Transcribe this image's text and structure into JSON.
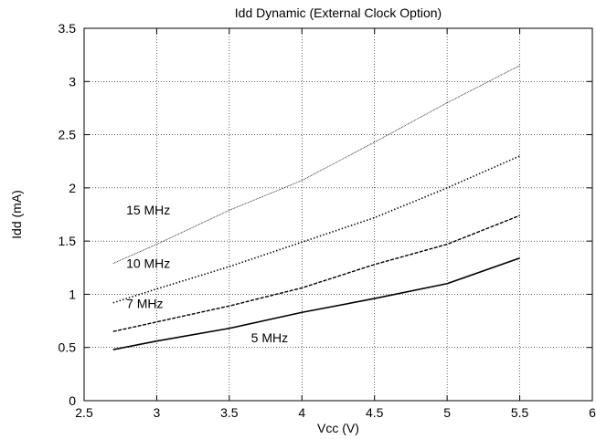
{
  "chart_data": {
    "type": "line",
    "title": "Idd Dynamic (External Clock Option)",
    "xlabel": "Vcc (V)",
    "ylabel": "Idd (mA)",
    "xlim": [
      2.5,
      6
    ],
    "ylim": [
      0,
      3.5
    ],
    "x_ticks": [
      "2.5",
      "3",
      "3.5",
      "4",
      "4.5",
      "5",
      "5.5",
      "6"
    ],
    "y_ticks": [
      "0",
      "0.5",
      "1",
      "1.5",
      "2",
      "2.5",
      "3",
      "3.5"
    ],
    "grid": true,
    "legend": "none",
    "series": [
      {
        "name": "5 MHz",
        "x": [
          2.7,
          3.0,
          3.5,
          4.0,
          4.5,
          5.0,
          5.5
        ],
        "y": [
          0.48,
          0.56,
          0.68,
          0.83,
          0.96,
          1.1,
          1.34
        ],
        "style": "solid"
      },
      {
        "name": "7 MHz",
        "x": [
          2.7,
          3.0,
          3.5,
          4.0,
          4.5,
          5.0,
          5.5
        ],
        "y": [
          0.65,
          0.74,
          0.89,
          1.06,
          1.28,
          1.47,
          1.74
        ],
        "style": "dashed"
      },
      {
        "name": "10 MHz",
        "x": [
          2.7,
          3.0,
          3.5,
          4.0,
          4.5,
          5.0,
          5.5
        ],
        "y": [
          0.92,
          1.05,
          1.26,
          1.49,
          1.72,
          2.0,
          2.3
        ],
        "style": "dotted"
      },
      {
        "name": "15 MHz",
        "x": [
          2.7,
          3.0,
          3.5,
          4.0,
          4.5,
          5.0,
          5.5
        ],
        "y": [
          1.29,
          1.47,
          1.79,
          2.07,
          2.43,
          2.8,
          3.15
        ],
        "style": "fine"
      }
    ],
    "series_labels": [
      {
        "text": "15 MHz",
        "x": 2.79,
        "y": 1.75
      },
      {
        "text": "10 MHz",
        "x": 2.79,
        "y": 1.25
      },
      {
        "text": "7 MHz",
        "x": 2.79,
        "y": 0.87
      },
      {
        "text": "5 MHz",
        "x": 3.65,
        "y": 0.55
      }
    ]
  }
}
